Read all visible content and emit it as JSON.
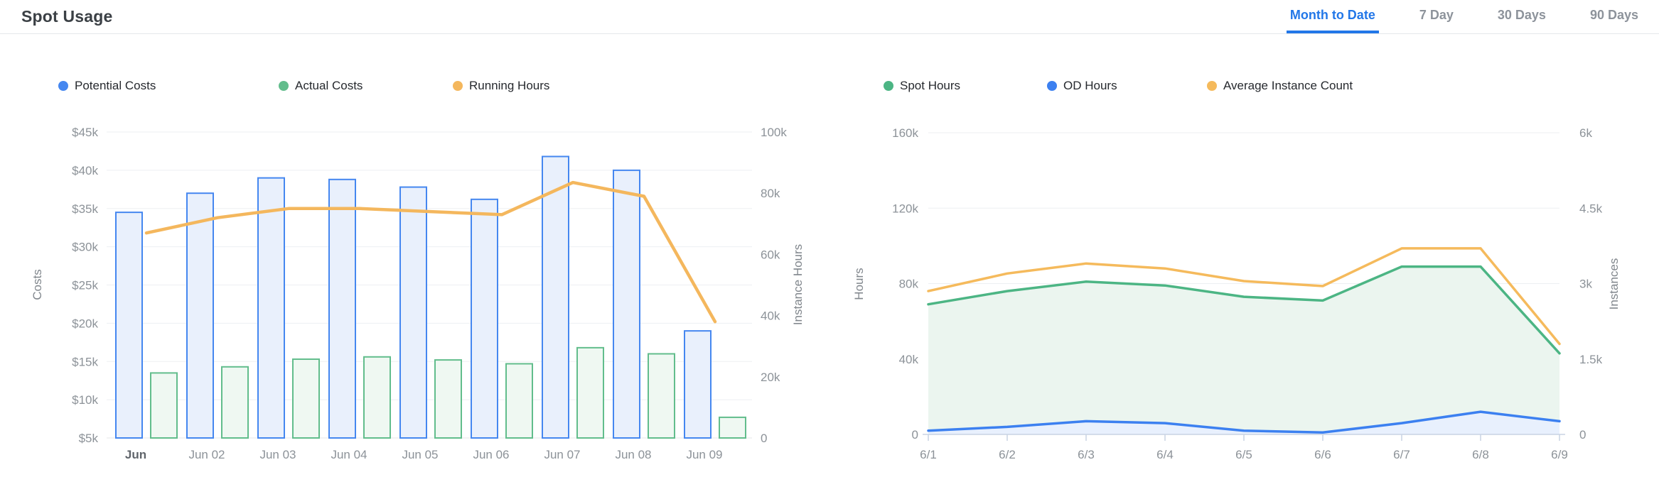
{
  "header": {
    "title": "Spot Usage",
    "tabs": [
      {
        "label": "Month to Date",
        "active": true
      },
      {
        "label": "7 Day",
        "active": false
      },
      {
        "label": "30 Days",
        "active": false
      },
      {
        "label": "90 Days",
        "active": false
      }
    ],
    "active_tab_color": "#2277E8",
    "inactive_tab_color": "#8D939B"
  },
  "chart_data": [
    {
      "type": "bar",
      "title": "Spot Usage Costs",
      "categories": [
        "Jun",
        "Jun 02",
        "Jun 03",
        "Jun 04",
        "Jun 05",
        "Jun 06",
        "Jun 07",
        "Jun 08",
        "Jun 09"
      ],
      "series": [
        {
          "name": "Potential Costs",
          "type": "bar",
          "axis": "left",
          "color": "#4587F0",
          "fill": "#E9F0FC",
          "values": [
            34500,
            37000,
            39000,
            38800,
            37800,
            36200,
            41800,
            40000,
            19000
          ]
        },
        {
          "name": "Actual Costs",
          "type": "bar",
          "axis": "left",
          "color": "#62BD8C",
          "fill": "#EFF8F2",
          "values": [
            13500,
            14300,
            15300,
            15600,
            15200,
            14700,
            16800,
            16000,
            7700
          ]
        },
        {
          "name": "Running Hours",
          "type": "line",
          "axis": "right",
          "color": "#F4B75D",
          "values": [
            67000,
            72000,
            75000,
            75000,
            74000,
            73000,
            83500,
            79000,
            38000
          ]
        }
      ],
      "left_axis": {
        "label": "Costs",
        "min": 5000,
        "max": 45000,
        "ticks": [
          "$45k",
          "$40k",
          "$35k",
          "$30k",
          "$25k",
          "$20k",
          "$15k",
          "$10k",
          "$5k"
        ]
      },
      "right_axis": {
        "label": "Instance Hours",
        "min": 0,
        "max": 100000,
        "ticks": [
          "100k",
          "80k",
          "60k",
          "40k",
          "20k",
          "0"
        ]
      },
      "grid": true,
      "legend_position": "top"
    },
    {
      "type": "area",
      "title": "Spot Usage Hours",
      "categories": [
        "6/1",
        "6/2",
        "6/3",
        "6/4",
        "6/5",
        "6/6",
        "6/7",
        "6/8",
        "6/9"
      ],
      "series": [
        {
          "name": "Spot Hours",
          "type": "area",
          "axis": "left",
          "color": "#4CB584",
          "fill": "#EBF5EF",
          "values": [
            69000,
            76000,
            81000,
            79000,
            73000,
            71000,
            89000,
            89000,
            43000
          ]
        },
        {
          "name": "OD Hours",
          "type": "area",
          "axis": "left",
          "color": "#3C80F0",
          "fill": "#E8F0FD",
          "values": [
            2000,
            4000,
            7000,
            6000,
            2000,
            1000,
            6000,
            12000,
            7000
          ]
        },
        {
          "name": "Average Instance Count",
          "type": "line",
          "axis": "right",
          "color": "#F5BA5C",
          "values": [
            2850,
            3200,
            3400,
            3300,
            3050,
            2950,
            3700,
            3700,
            1800
          ]
        }
      ],
      "left_axis": {
        "label": "Hours",
        "min": 0,
        "max": 160000,
        "ticks": [
          "160k",
          "120k",
          "80k",
          "40k",
          "0"
        ]
      },
      "right_axis": {
        "label": "Instances",
        "min": 0,
        "max": 6000,
        "ticks": [
          "6k",
          "4.5k",
          "3k",
          "1.5k",
          "0"
        ]
      },
      "grid": true,
      "legend_position": "top"
    }
  ],
  "colors": {
    "grid": "#EDEFF2",
    "axis_line_left_chart": "#E4E7EA",
    "axis_line_right_chart": "#C9D3E3",
    "tick_text": "#8C9298",
    "divider": "#E5E7EA"
  }
}
